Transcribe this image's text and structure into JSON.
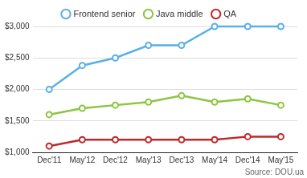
{
  "chart_data": {
    "type": "line",
    "categories": [
      "Dec'11",
      "May'12",
      "Dec'12",
      "May'13",
      "Dec'13",
      "May'14",
      "Dec'14",
      "May'15"
    ],
    "series": [
      {
        "name": "Frontend senior",
        "color": "#5ab0e6",
        "values": [
          2000,
          2380,
          2500,
          2700,
          2700,
          3000,
          3000,
          3000
        ]
      },
      {
        "name": "Java middle",
        "color": "#8cc540",
        "values": [
          1600,
          1700,
          1750,
          1800,
          1900,
          1800,
          1850,
          1750
        ]
      },
      {
        "name": "QA",
        "color": "#c0282b",
        "values": [
          1100,
          1200,
          1200,
          1200,
          1200,
          1200,
          1250,
          1250
        ]
      }
    ],
    "ylim": [
      1000,
      3000
    ],
    "yticks": [
      {
        "value": 1000,
        "label": "$1,000"
      },
      {
        "value": 1500,
        "label": "$1,500"
      },
      {
        "value": 2000,
        "label": "$2,000"
      },
      {
        "value": 2500,
        "label": "$2,500"
      },
      {
        "value": 3000,
        "label": "$3,000"
      }
    ],
    "grid": true,
    "legend": "top",
    "marker": "circle",
    "annotations": [
      "Source: DOU.ua"
    ]
  }
}
